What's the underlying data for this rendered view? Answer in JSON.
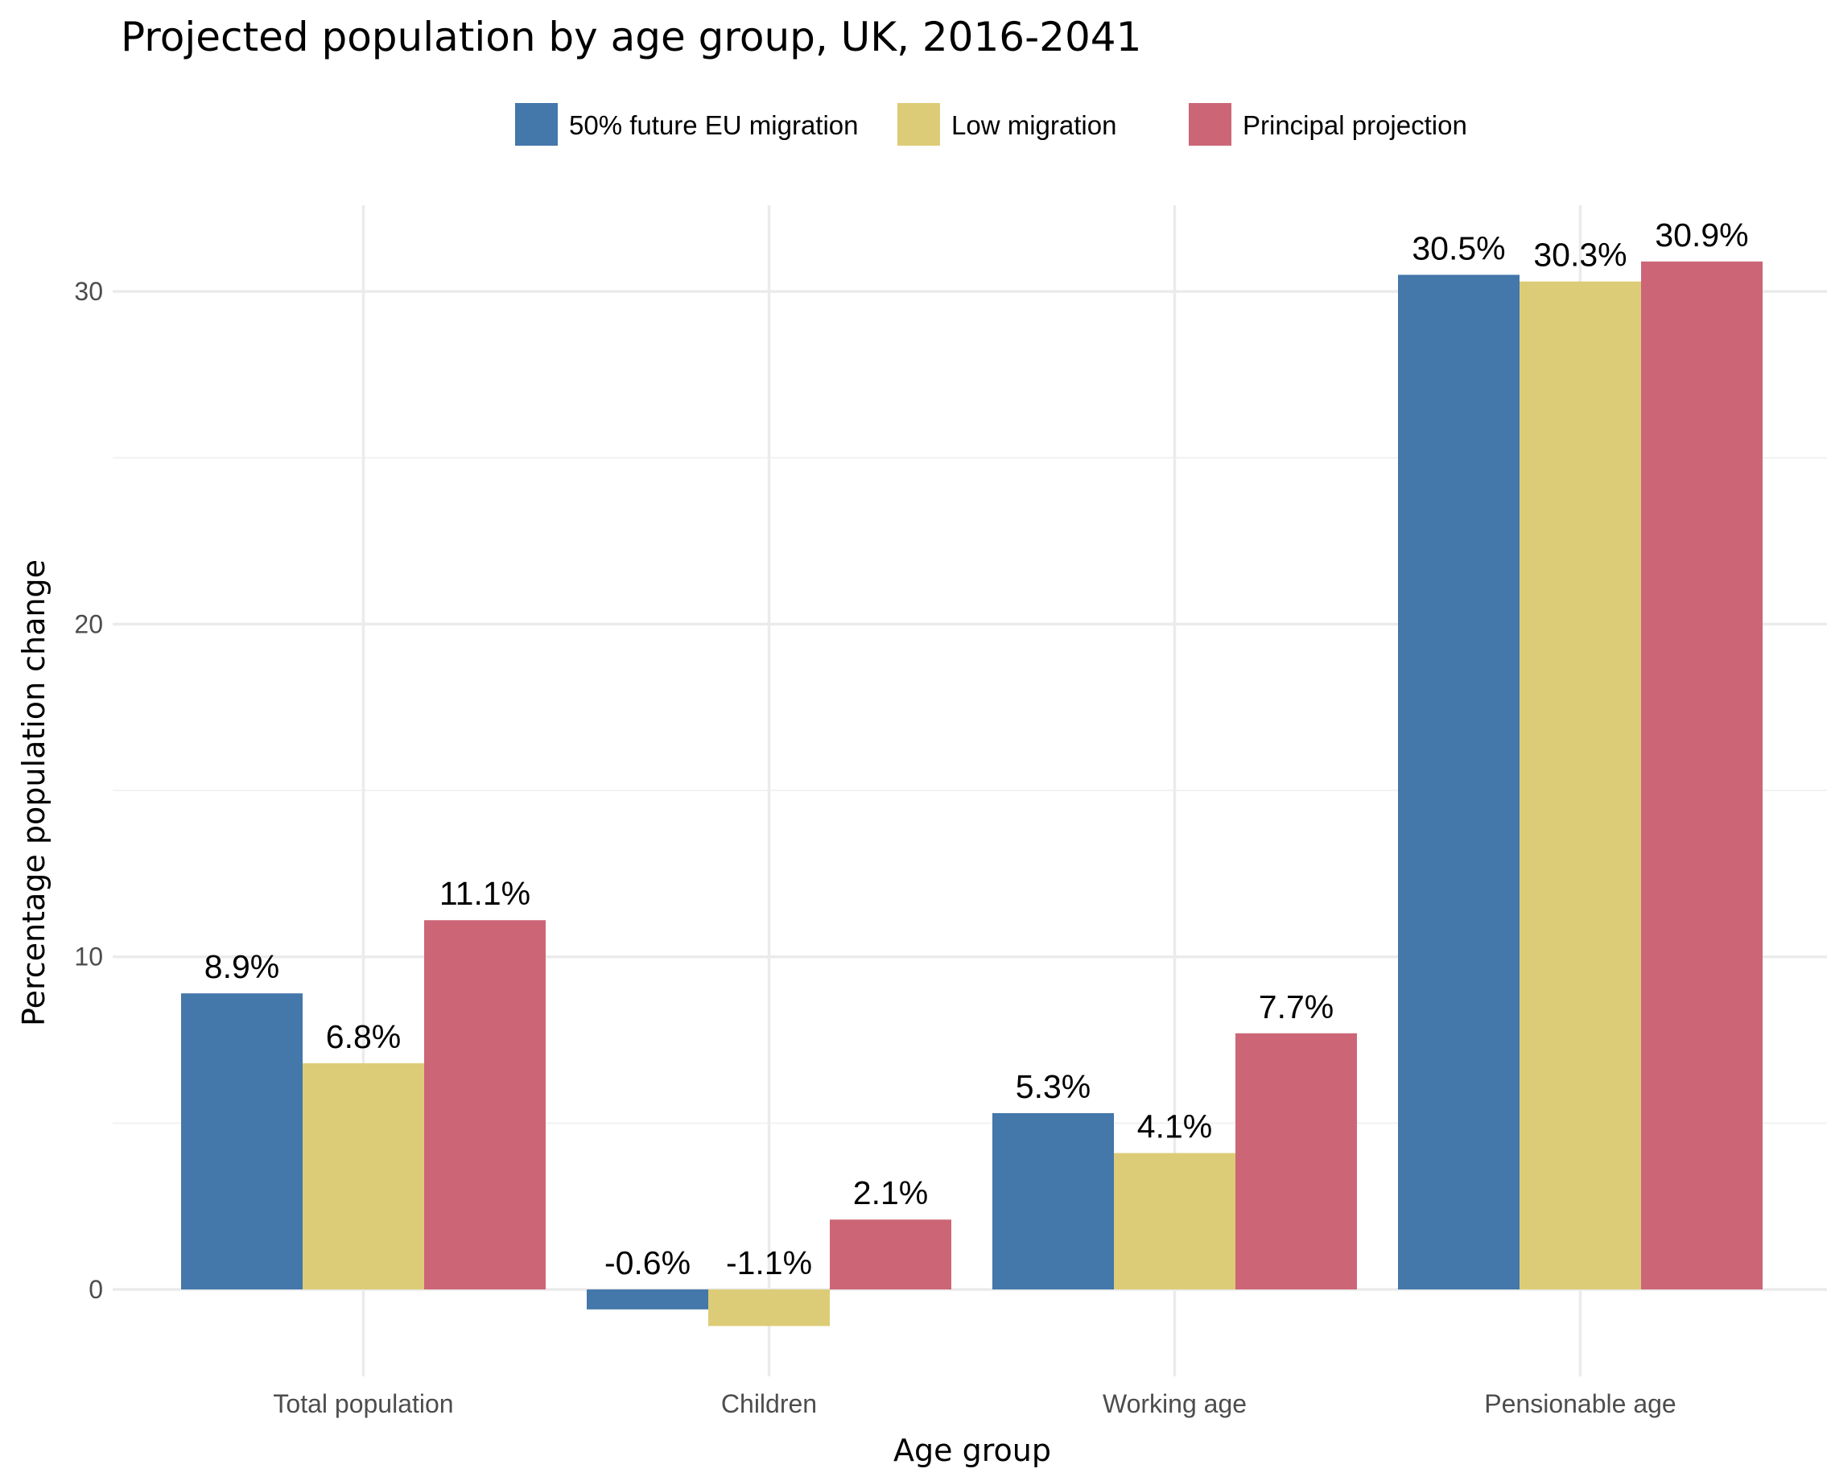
{
  "chart_data": {
    "type": "bar",
    "title": "Projected population by age group, UK, 2016-2041",
    "xlabel": "Age group",
    "ylabel": "Percentage population change",
    "categories": [
      "Total population",
      "Children",
      "Working age",
      "Pensionable age"
    ],
    "series": [
      {
        "name": "50% future EU migration",
        "color": "#4477aa",
        "values": [
          8.9,
          -0.6,
          5.3,
          30.5
        ],
        "labels": [
          "8.9%",
          "-0.6%",
          "5.3%",
          "30.5%"
        ]
      },
      {
        "name": "Low migration",
        "color": "#ddcc77",
        "values": [
          6.8,
          -1.1,
          4.1,
          30.3
        ],
        "labels": [
          "6.8%",
          "-1.1%",
          "4.1%",
          "30.3%"
        ]
      },
      {
        "name": "Principal projection",
        "color": "#cc6677",
        "values": [
          11.1,
          2.1,
          7.7,
          30.9
        ],
        "labels": [
          "11.1%",
          "2.1%",
          "7.7%",
          "30.9%"
        ]
      }
    ],
    "y_ticks": [
      0,
      10,
      20,
      30
    ],
    "ylim": [
      -2.4,
      32.6
    ],
    "grid": true,
    "legend_position": "top"
  }
}
